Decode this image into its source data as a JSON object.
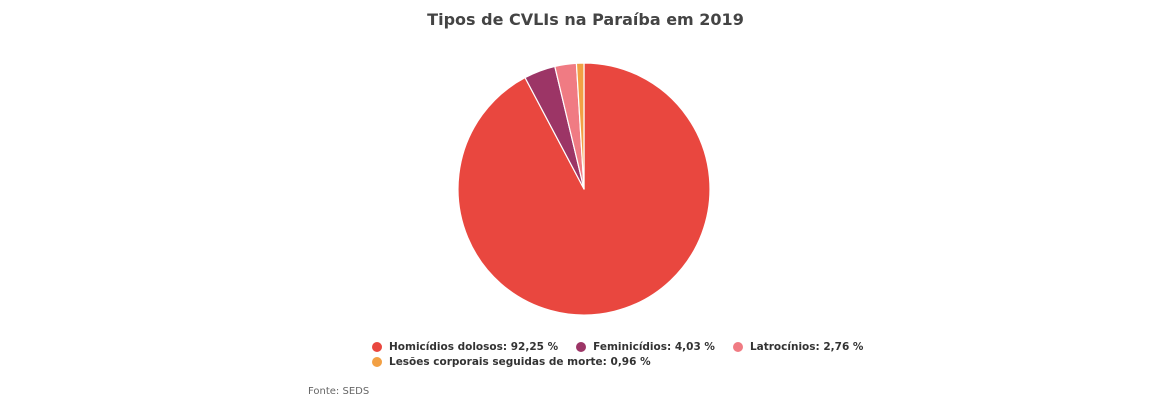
{
  "chart_data": {
    "type": "pie",
    "title": "Tipos de CVLIs na Paraíba em 2019",
    "unit": "%",
    "slices": [
      {
        "label": "Homicídios dolosos",
        "value": 92.25,
        "value_label": "92,25 %",
        "color": "#e9473f"
      },
      {
        "label": "Feminicídios",
        "value": 4.03,
        "value_label": "4,03 %",
        "color": "#9c3566"
      },
      {
        "label": "Latrocínios",
        "value": 2.76,
        "value_label": "2,76 %",
        "color": "#f07b83"
      },
      {
        "label": "Lesões corporais seguidas de morte",
        "value": 0.96,
        "value_label": "0,96 %",
        "color": "#f2a044"
      }
    ],
    "legend_position": "bottom",
    "source": "Fonte: SEDS"
  }
}
